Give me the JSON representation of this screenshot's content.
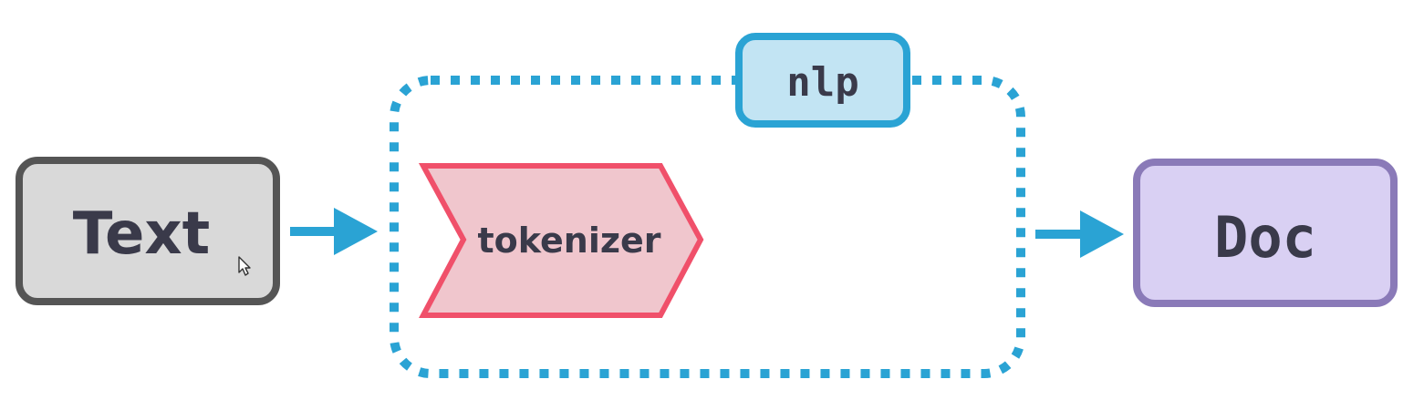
{
  "nodes": {
    "text": {
      "label": "Text"
    },
    "pipeline": {
      "label": "nlp"
    },
    "tokenizer": {
      "label": "tokenizer"
    },
    "doc": {
      "label": "Doc"
    }
  },
  "colors": {
    "arrow": "#2aa3d4",
    "pipeline_border": "#2aa3d4",
    "pipeline_fill": "#c2e4f3",
    "text_border": "#555555",
    "text_fill": "#d9d9d9",
    "tokenizer_border": "#f0506a",
    "tokenizer_fill": "#f0c6cd",
    "doc_border": "#8a7ab8",
    "doc_fill": "#d9d0f3",
    "label": "#3a3a4a"
  },
  "icons": {
    "cursor": "mouse-pointer-icon"
  }
}
